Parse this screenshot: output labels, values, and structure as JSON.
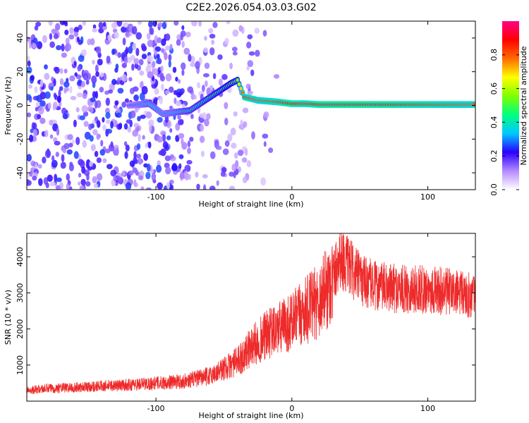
{
  "figure": {
    "title": "C2E2.2026.054.03.03.G02"
  },
  "chart_data": [
    {
      "type": "heatmap",
      "name": "spectrogram",
      "xlabel": "Height of straight line (km)",
      "ylabel": "Frequency (Hz)",
      "xlim": [
        -195,
        135
      ],
      "ylim": [
        -50,
        50
      ],
      "xticks": [
        -100,
        0,
        100
      ],
      "yticks": [
        -40,
        -20,
        0,
        20,
        40
      ],
      "grid": false,
      "colorbar": {
        "label": "Normalized spectral amplitude",
        "range": [
          0,
          1
        ],
        "ticks": [
          0.0,
          0.2,
          0.4,
          0.6,
          0.8
        ],
        "tick_labels": [
          "0.0",
          "0.2",
          "0.4",
          "0.6",
          "0.8"
        ],
        "colors": [
          "#ffffff",
          "#b48aff",
          "#2a00ff",
          "#00c8ff",
          "#00ff7f",
          "#7fff00",
          "#ffff00",
          "#ff6a00",
          "#ff0000",
          "#ff0088"
        ]
      },
      "trace": [
        {
          "x": -120,
          "f": 0,
          "a": 0.25
        },
        {
          "x": -105,
          "f": 1,
          "a": 0.35
        },
        {
          "x": -95,
          "f": -5,
          "a": 0.3
        },
        {
          "x": -75,
          "f": -3,
          "a": 0.4
        },
        {
          "x": -60,
          "f": 5,
          "a": 0.45
        },
        {
          "x": -45,
          "f": 13,
          "a": 0.5
        },
        {
          "x": -40,
          "f": 15,
          "a": 0.55
        },
        {
          "x": -35,
          "f": 5,
          "a": 0.85
        },
        {
          "x": -25,
          "f": 3,
          "a": 0.8
        },
        {
          "x": -10,
          "f": 2,
          "a": 0.85
        },
        {
          "x": 0,
          "f": 1,
          "a": 0.9
        },
        {
          "x": 10,
          "f": 1,
          "a": 0.85
        },
        {
          "x": 20,
          "f": 0.5,
          "a": 0.9
        },
        {
          "x": 60,
          "f": 0.5,
          "a": 0.9
        },
        {
          "x": 100,
          "f": 0.5,
          "a": 0.85
        },
        {
          "x": 135,
          "f": 0.5,
          "a": 0.8
        }
      ]
    },
    {
      "type": "line",
      "name": "snr",
      "xlabel": "Height of straight line (km)",
      "ylabel": "SNR (10 * v/v)",
      "xlim": [
        -195,
        135
      ],
      "ylim": [
        0,
        4650
      ],
      "xticks": [
        -100,
        0,
        100
      ],
      "yticks": [
        1000,
        2000,
        3000,
        4000
      ],
      "grid": false,
      "color": "#ee2a2a",
      "series": [
        {
          "name": "SNR",
          "x": [
            -195,
            -180,
            -160,
            -140,
            -120,
            -100,
            -80,
            -60,
            -50,
            -40,
            -30,
            -20,
            -10,
            0,
            10,
            20,
            30,
            35,
            40,
            50,
            60,
            80,
            100,
            120,
            135
          ],
          "values": [
            300,
            350,
            380,
            420,
            450,
            500,
            550,
            700,
            900,
            1100,
            1500,
            1800,
            2000,
            2200,
            2500,
            2800,
            3400,
            4000,
            3800,
            3400,
            3200,
            3100,
            3100,
            3000,
            2900
          ]
        }
      ]
    }
  ]
}
